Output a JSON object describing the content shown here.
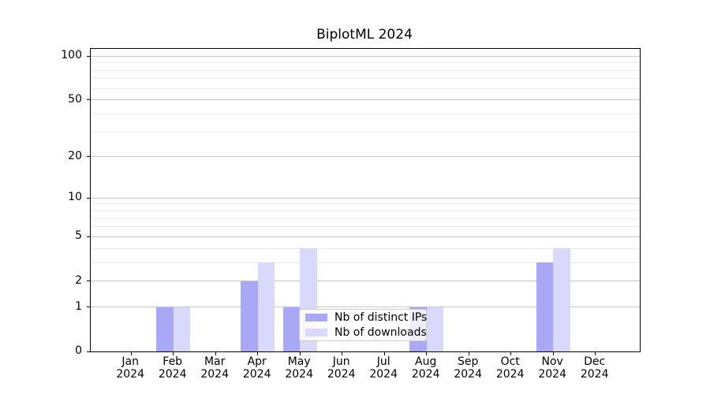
{
  "title": "BiplotML 2024",
  "legend": {
    "items": [
      {
        "label": "Nb of distinct IPs",
        "color": "#a8a8f6"
      },
      {
        "label": "Nb of downloads",
        "color": "#d9d9fb"
      }
    ]
  },
  "chart_data": {
    "type": "bar",
    "title": "BiplotML 2024",
    "categories": [
      "Jan",
      "Feb",
      "Mar",
      "Apr",
      "May",
      "Jun",
      "Jul",
      "Aug",
      "Sep",
      "Oct",
      "Nov",
      "Dec"
    ],
    "year": "2024",
    "series": [
      {
        "name": "Nb of distinct IPs",
        "color": "#a8a8f6",
        "values": [
          0,
          1,
          0,
          2,
          1,
          0,
          0,
          1,
          0,
          0,
          3,
          0
        ]
      },
      {
        "name": "Nb of downloads",
        "color": "#d9d9fb",
        "values": [
          0,
          1,
          0,
          3,
          4,
          0,
          0,
          1,
          0,
          0,
          4,
          0
        ]
      }
    ],
    "xlabel": "",
    "ylabel": "",
    "yscale": "log1p",
    "ylim": [
      0,
      112
    ],
    "y_major_ticks": [
      0,
      1,
      2,
      5,
      10,
      20,
      50,
      100
    ],
    "y_minor_ticks": [
      3,
      4,
      6,
      7,
      8,
      9,
      30,
      40,
      60,
      70,
      80,
      90
    ],
    "grid": "horizontal",
    "legend_position": "lower-center"
  },
  "colors": {
    "bar_distinct_ips": "#a8a8f6",
    "bar_downloads": "#d9d9fb",
    "grid_major": "#c6c6c6",
    "grid_minor": "#eaeaea",
    "spine": "#000000",
    "legend_border": "#cccccc"
  }
}
